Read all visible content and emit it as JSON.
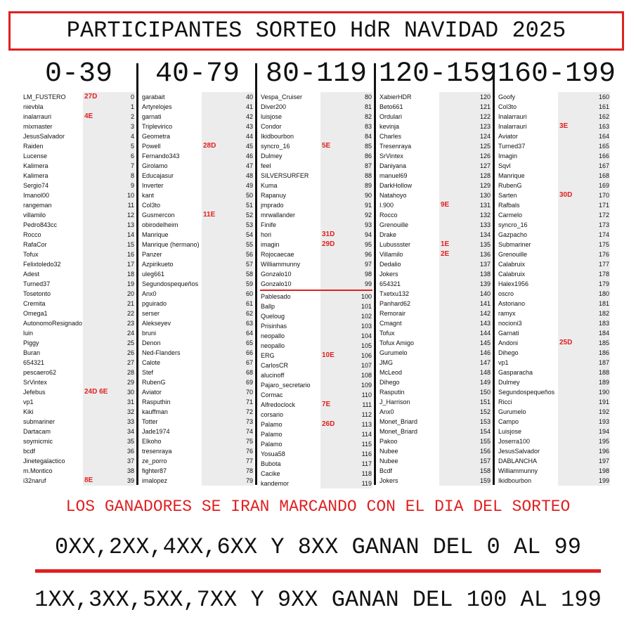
{
  "title": "PARTICIPANTES SORTEO HdR NAVIDAD 2025",
  "columns": [
    {
      "header": "0-39",
      "rows": [
        {
          "name": "LM_FUSTERO",
          "mark": "27D",
          "num": 0
        },
        {
          "name": "nievbla",
          "num": 1
        },
        {
          "name": "inalarrauri",
          "mark": "4E",
          "num": 2
        },
        {
          "name": "mixmaster",
          "num": 3
        },
        {
          "name": "JesusSalvador",
          "num": 4
        },
        {
          "name": "Raiden",
          "num": 5
        },
        {
          "name": "Lucense",
          "num": 6
        },
        {
          "name": "Kalimera",
          "num": 7
        },
        {
          "name": "Kalimera",
          "num": 8
        },
        {
          "name": "Sergio74",
          "num": 9
        },
        {
          "name": "Imanol00",
          "num": 10
        },
        {
          "name": "rangeman",
          "num": 11
        },
        {
          "name": "villamilo",
          "num": 12
        },
        {
          "name": "Pedro843cc",
          "num": 13
        },
        {
          "name": "Rocco",
          "num": 14
        },
        {
          "name": "RafaCor",
          "num": 15
        },
        {
          "name": "Tofux",
          "num": 16
        },
        {
          "name": "Felixtoledo32",
          "num": 17
        },
        {
          "name": "Adest",
          "num": 18
        },
        {
          "name": "Turned37",
          "num": 19
        },
        {
          "name": "Tosetonto",
          "num": 20
        },
        {
          "name": "Cremita",
          "num": 21
        },
        {
          "name": "Omega1",
          "num": 22
        },
        {
          "name": "AutonomoResignado",
          "num": 23
        },
        {
          "name": "luin",
          "num": 24
        },
        {
          "name": "Piggy",
          "num": 25
        },
        {
          "name": "Buran",
          "num": 26
        },
        {
          "name": "654321",
          "num": 27
        },
        {
          "name": "pescaero62",
          "num": 28
        },
        {
          "name": "SrVintex",
          "num": 29
        },
        {
          "name": "Jefebus",
          "mark": "24D 6E",
          "num": 30
        },
        {
          "name": "vp1",
          "num": 31
        },
        {
          "name": "Kiki",
          "num": 32
        },
        {
          "name": "submariner",
          "num": 33
        },
        {
          "name": "Dartacam",
          "num": 34
        },
        {
          "name": "soymicmic",
          "num": 35
        },
        {
          "name": "bcdf",
          "num": 36
        },
        {
          "name": "Jinetegalactico",
          "num": 37
        },
        {
          "name": "m.Montico",
          "num": 38
        },
        {
          "name": "i32naruf",
          "mark": "8E",
          "num": 39
        }
      ]
    },
    {
      "header": "40-79",
      "rows": [
        {
          "name": "garabait",
          "num": 40
        },
        {
          "name": "Artyrelojes",
          "num": 41
        },
        {
          "name": "garnati",
          "num": 42
        },
        {
          "name": "Triplevirico",
          "num": 43
        },
        {
          "name": "Geometra",
          "num": 44
        },
        {
          "name": "Powell",
          "mark": "28D",
          "num": 45
        },
        {
          "name": "Fernando343",
          "num": 46
        },
        {
          "name": "Girolamo",
          "num": 47
        },
        {
          "name": "Educajasur",
          "num": 48
        },
        {
          "name": "Inverter",
          "num": 49
        },
        {
          "name": "kant",
          "num": 50
        },
        {
          "name": "Col3to",
          "num": 51
        },
        {
          "name": "Gusmercon",
          "mark": "11E",
          "num": 52
        },
        {
          "name": "obirodelheim",
          "num": 53
        },
        {
          "name": "Manrique",
          "num": 54
        },
        {
          "name": "Manrique (hermano)",
          "num": 55
        },
        {
          "name": "Panzer",
          "num": 56
        },
        {
          "name": "Azpirikueto",
          "num": 57
        },
        {
          "name": "uleg661",
          "num": 58
        },
        {
          "name": "Segundospequeños",
          "num": 59
        },
        {
          "name": "Anx0",
          "num": 60
        },
        {
          "name": "pguirado",
          "num": 61
        },
        {
          "name": "serser",
          "num": 62
        },
        {
          "name": "Alekseyev",
          "num": 63
        },
        {
          "name": "bruni",
          "num": 64
        },
        {
          "name": "Denon",
          "num": 65
        },
        {
          "name": "Ned-Flanders",
          "num": 66
        },
        {
          "name": "Calote",
          "num": 67
        },
        {
          "name": "Stef",
          "num": 68
        },
        {
          "name": "RubenG",
          "num": 69
        },
        {
          "name": "Aviator",
          "num": 70
        },
        {
          "name": "Rasputhin",
          "num": 71
        },
        {
          "name": "kauffman",
          "num": 72
        },
        {
          "name": "Totter",
          "num": 73
        },
        {
          "name": "Jade1974",
          "num": 74
        },
        {
          "name": "Elkoho",
          "num": 75
        },
        {
          "name": "tresenraya",
          "num": 76
        },
        {
          "name": "ze_porro",
          "num": 77
        },
        {
          "name": "fighter87",
          "num": 78
        },
        {
          "name": "imalopez",
          "num": 79
        }
      ]
    },
    {
      "header": "80-119",
      "rows": [
        {
          "name": "Vespa_Cruiser",
          "num": 80
        },
        {
          "name": "Diver200",
          "num": 81
        },
        {
          "name": "luisjose",
          "num": 82
        },
        {
          "name": "Condor",
          "num": 83
        },
        {
          "name": "Ikidbourbon",
          "num": 84
        },
        {
          "name": "syncro_16",
          "mark": "5E",
          "num": 85
        },
        {
          "name": "Dulmey",
          "num": 86
        },
        {
          "name": "feel",
          "num": 87
        },
        {
          "name": "SILVERSURFER",
          "num": 88
        },
        {
          "name": "Kuma",
          "num": 89
        },
        {
          "name": "Rapanuy",
          "num": 90
        },
        {
          "name": "jmprado",
          "num": 91
        },
        {
          "name": "mrwallander",
          "num": 92
        },
        {
          "name": "Finife",
          "num": 93
        },
        {
          "name": "hori",
          "mark": "31D",
          "num": 94
        },
        {
          "name": "imagin",
          "mark": "29D",
          "num": 95
        },
        {
          "name": "Rojocaecae",
          "num": 96
        },
        {
          "name": "Williammunny",
          "num": 97
        },
        {
          "name": "Gonzalo10",
          "num": 98
        },
        {
          "name": "Gonzalo10",
          "num": 99
        },
        {
          "name": "Pablesado",
          "num": 100
        },
        {
          "name": "Ballp",
          "num": 101
        },
        {
          "name": "Queloug",
          "num": 102
        },
        {
          "name": "Prisinhas",
          "num": 103
        },
        {
          "name": "neopallo",
          "num": 104
        },
        {
          "name": "neopallo",
          "num": 105
        },
        {
          "name": "ERG",
          "mark": "10E",
          "num": 106
        },
        {
          "name": "CarlosCR",
          "num": 107
        },
        {
          "name": "alucinoff",
          "num": 108
        },
        {
          "name": "Pajaro_secretario",
          "num": 109
        },
        {
          "name": "Cormac",
          "num": 110
        },
        {
          "name": "Alfredoclock",
          "mark": "7E",
          "num": 111
        },
        {
          "name": "corsario",
          "num": 112
        },
        {
          "name": "Palamo",
          "mark": "26D",
          "num": 113
        },
        {
          "name": "Palamo",
          "num": 114
        },
        {
          "name": "Palamo",
          "num": 115
        },
        {
          "name": "Yosua58",
          "num": 116
        },
        {
          "name": "Bubota",
          "num": 117
        },
        {
          "name": "Cacike",
          "num": 118
        },
        {
          "name": "kandemor",
          "num": 119
        }
      ]
    },
    {
      "header": "120-159",
      "rows": [
        {
          "name": "XabierHDR",
          "num": 120
        },
        {
          "name": "Beto661",
          "num": 121
        },
        {
          "name": "Ordulari",
          "num": 122
        },
        {
          "name": "kevinja",
          "num": 123
        },
        {
          "name": "Charles",
          "num": 124
        },
        {
          "name": "Tresenraya",
          "num": 125
        },
        {
          "name": "SrVintex",
          "num": 126
        },
        {
          "name": "Daniyana",
          "num": 127
        },
        {
          "name": "manuel69",
          "num": 128
        },
        {
          "name": "DarkHollow",
          "num": 129
        },
        {
          "name": "Natahoyo",
          "num": 130
        },
        {
          "name": "I.900",
          "mark": "9E",
          "num": 131
        },
        {
          "name": "Rocco",
          "num": 132
        },
        {
          "name": "Grenouille",
          "num": 133
        },
        {
          "name": "Drake",
          "num": 134
        },
        {
          "name": "Lubussster",
          "mark": "1E",
          "num": 135
        },
        {
          "name": "Villamilo",
          "mark": "2E",
          "num": 136
        },
        {
          "name": "Dedalio",
          "num": 137
        },
        {
          "name": "Jokers",
          "num": 138
        },
        {
          "name": "654321",
          "num": 139
        },
        {
          "name": "Txetxu132",
          "num": 140
        },
        {
          "name": "Panhard62",
          "num": 141
        },
        {
          "name": "Remorair",
          "num": 142
        },
        {
          "name": "Cmagnt",
          "num": 143
        },
        {
          "name": "Tofux",
          "num": 144
        },
        {
          "name": "Tofux Amigo",
          "num": 145
        },
        {
          "name": "Gurumelo",
          "num": 146
        },
        {
          "name": "JMG",
          "num": 147
        },
        {
          "name": "McLeod",
          "num": 148
        },
        {
          "name": "Dihego",
          "num": 149
        },
        {
          "name": "Rasputin",
          "num": 150
        },
        {
          "name": "J_Harrison",
          "num": 151
        },
        {
          "name": "Anx0",
          "num": 152
        },
        {
          "name": "Monet_Briard",
          "num": 153
        },
        {
          "name": "Monet_Briard",
          "num": 154
        },
        {
          "name": "Pakoo",
          "num": 155
        },
        {
          "name": "Nubee",
          "num": 156
        },
        {
          "name": "Nubee",
          "num": 157
        },
        {
          "name": "Bcdf",
          "num": 158
        },
        {
          "name": "Jokers",
          "num": 159
        }
      ]
    },
    {
      "header": "160-199",
      "rows": [
        {
          "name": "Goofy",
          "num": 160
        },
        {
          "name": "Col3to",
          "num": 161
        },
        {
          "name": "Inalarrauri",
          "num": 162
        },
        {
          "name": "Inalarrauri",
          "mark": "3E",
          "num": 163
        },
        {
          "name": "Aviator",
          "num": 164
        },
        {
          "name": "Turned37",
          "num": 165
        },
        {
          "name": "Imagin",
          "num": 166
        },
        {
          "name": "Sqvl",
          "num": 167
        },
        {
          "name": "Manrique",
          "num": 168
        },
        {
          "name": "RubenG",
          "num": 169
        },
        {
          "name": "Sarten",
          "mark": "30D",
          "num": 170
        },
        {
          "name": "Rafbals",
          "num": 171
        },
        {
          "name": "Carmelo",
          "num": 172
        },
        {
          "name": "syncro_16",
          "num": 173
        },
        {
          "name": "Gazpacho",
          "num": 174
        },
        {
          "name": "Submariner",
          "num": 175
        },
        {
          "name": "Grenouille",
          "num": 176
        },
        {
          "name": "Calabruix",
          "num": 177
        },
        {
          "name": "Calabruix",
          "num": 178
        },
        {
          "name": "Halex1956",
          "num": 179
        },
        {
          "name": "oscro",
          "num": 180
        },
        {
          "name": "Astoriano",
          "num": 181
        },
        {
          "name": "ramyx",
          "num": 182
        },
        {
          "name": "nocioni3",
          "num": 183
        },
        {
          "name": "Garnati",
          "num": 184
        },
        {
          "name": "Andoni",
          "mark": "25D",
          "num": 185
        },
        {
          "name": "Dihego",
          "num": 186
        },
        {
          "name": "vp1",
          "num": 187
        },
        {
          "name": "Gasparacha",
          "num": 188
        },
        {
          "name": "Dulmey",
          "num": 189
        },
        {
          "name": "Segundospequeños",
          "num": 190
        },
        {
          "name": "Ricci",
          "num": 191
        },
        {
          "name": "Gurumelo",
          "num": 192
        },
        {
          "name": "Campo",
          "num": 193
        },
        {
          "name": "Luisjose",
          "num": 194
        },
        {
          "name": "Joserra100",
          "num": 195
        },
        {
          "name": "JesusSalvador",
          "num": 196
        },
        {
          "name": "DABLANCHA",
          "num": 197
        },
        {
          "name": "Williammunny",
          "num": 198
        },
        {
          "name": "Ikidbourbon",
          "num": 199
        }
      ]
    }
  ],
  "footer": {
    "note": "LOS GANADORES SE IRAN MARCANDO CON EL DIA DEL SORTEO",
    "rule_even": "0XX,2XX,4XX,6XX Y 8XX GANAN DEL 0 AL 99",
    "rule_odd": "1XX,3XX,5XX,7XX Y 9XX GANAN DEL 100 AL 199"
  }
}
